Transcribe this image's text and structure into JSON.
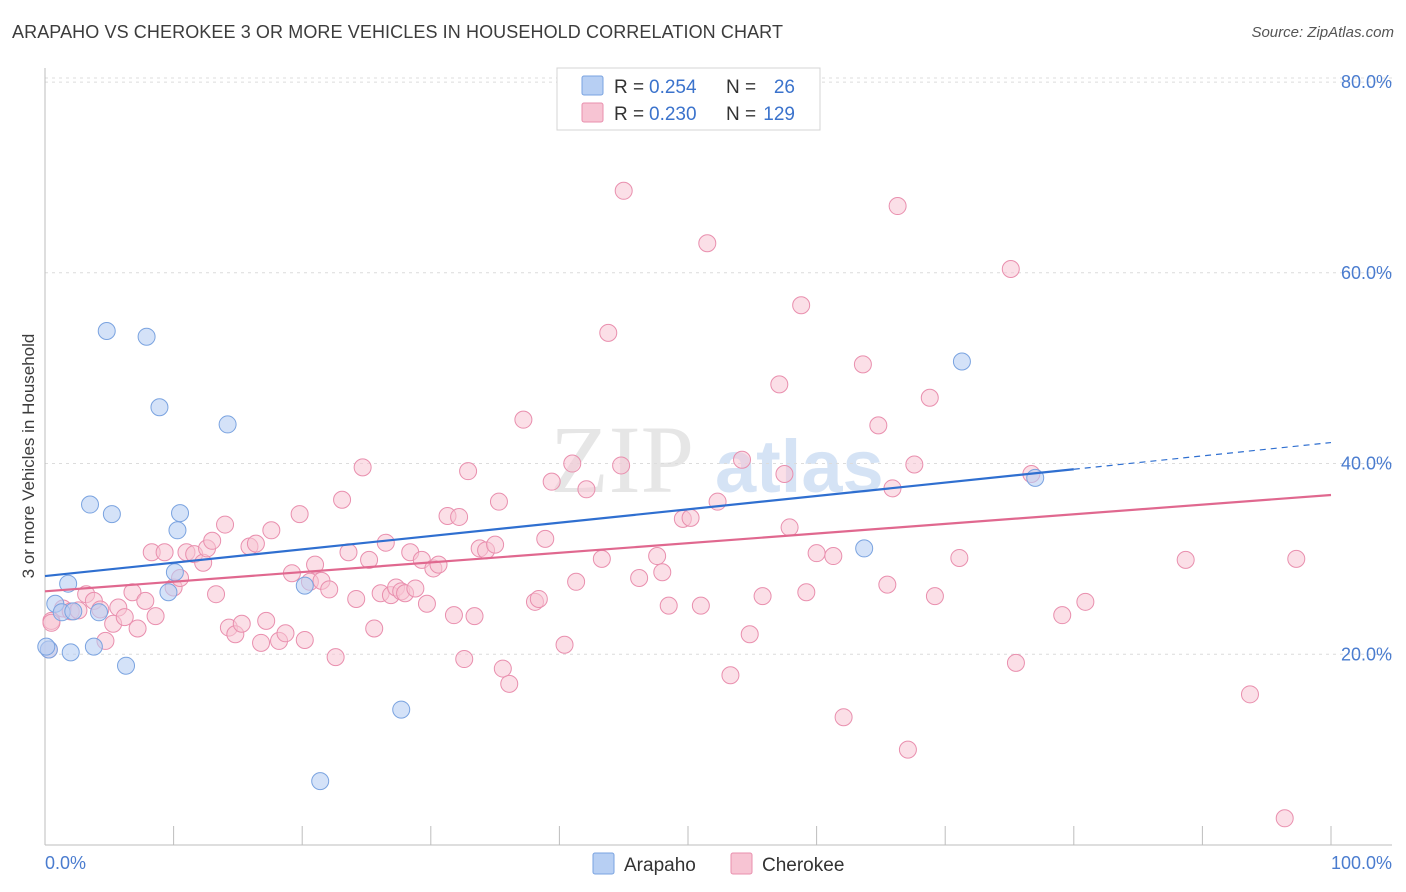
{
  "title": "ARAPAHO VS CHEROKEE 3 OR MORE VEHICLES IN HOUSEHOLD CORRELATION CHART",
  "source": "Source: ZipAtlas.com",
  "watermark": {
    "zip": "ZIP",
    "atlas": "atlas"
  },
  "colors": {
    "arapaho_fill": "#b7cff3",
    "arapaho_stroke": "#7aa3e0",
    "arapaho_line": "#2f6fd0",
    "cherokee_fill": "#f7c4d3",
    "cherokee_stroke": "#e98fae",
    "cherokee_line": "#e0688f",
    "grid": "#dcdcdc",
    "axis_label": "#4a7ccf"
  },
  "legend": {
    "arapaho": {
      "r_label": "R = ",
      "r_value": "0.254",
      "n_label": "N = ",
      "n_value": "26"
    },
    "cherokee": {
      "r_label": "R = ",
      "r_value": "0.230",
      "n_label": "N = ",
      "n_value": "129"
    }
  },
  "chart_data": {
    "type": "scatter",
    "title": "ARAPAHO VS CHEROKEE 3 OR MORE VEHICLES IN HOUSEHOLD CORRELATION CHART",
    "xlabel": "",
    "ylabel": "3 or more Vehicles in Household",
    "xlim": [
      0,
      100
    ],
    "ylim": [
      0,
      82
    ],
    "x_tick_labels": [
      "0.0%",
      "100.0%"
    ],
    "y_ticks": [
      20,
      40,
      60,
      80
    ],
    "y_tick_labels": [
      "20.0%",
      "40.0%",
      "60.0%",
      "80.0%"
    ],
    "grid": true,
    "legend_position": "top-center",
    "series": [
      {
        "name": "Arapaho",
        "r": 0.254,
        "n": 26,
        "trend": {
          "x": [
            0,
            80
          ],
          "y": [
            28.2,
            39.4
          ],
          "dashed_extension": {
            "x": [
              80,
              100
            ],
            "y": [
              39.4,
              42.2
            ]
          }
        },
        "points": [
          [
            0.3,
            20.5
          ],
          [
            0.8,
            25.3
          ],
          [
            1.3,
            24.4
          ],
          [
            1.8,
            27.4
          ],
          [
            2.0,
            20.2
          ],
          [
            2.2,
            24.5
          ],
          [
            3.5,
            35.7
          ],
          [
            3.8,
            20.8
          ],
          [
            4.2,
            24.4
          ],
          [
            4.8,
            53.9
          ],
          [
            5.2,
            34.7
          ],
          [
            6.3,
            18.8
          ],
          [
            7.9,
            53.3
          ],
          [
            8.9,
            45.9
          ],
          [
            9.6,
            26.5
          ],
          [
            10.1,
            28.6
          ],
          [
            10.3,
            33.0
          ],
          [
            10.5,
            34.8
          ],
          [
            14.2,
            44.1
          ],
          [
            20.2,
            27.2
          ],
          [
            21.4,
            6.7
          ],
          [
            27.7,
            14.2
          ],
          [
            63.7,
            31.1
          ],
          [
            71.3,
            50.7
          ],
          [
            77.0,
            38.5
          ],
          [
            0.1,
            20.8
          ]
        ]
      },
      {
        "name": "Cherokee",
        "r": 0.23,
        "n": 129,
        "trend": {
          "x": [
            0,
            100
          ],
          "y": [
            26.6,
            36.7
          ]
        },
        "points": [
          [
            0.3,
            20.5
          ],
          [
            0.5,
            23.5
          ],
          [
            1.4,
            24.8
          ],
          [
            2.0,
            24.5
          ],
          [
            2.6,
            24.6
          ],
          [
            3.2,
            26.3
          ],
          [
            3.8,
            25.6
          ],
          [
            4.3,
            24.7
          ],
          [
            4.7,
            21.4
          ],
          [
            5.3,
            23.2
          ],
          [
            5.7,
            24.9
          ],
          [
            6.2,
            23.9
          ],
          [
            6.8,
            26.5
          ],
          [
            7.2,
            22.7
          ],
          [
            7.8,
            25.6
          ],
          [
            8.3,
            30.7
          ],
          [
            8.6,
            24.0
          ],
          [
            9.3,
            30.7
          ],
          [
            10.0,
            27.0
          ],
          [
            10.5,
            28.0
          ],
          [
            11.0,
            30.7
          ],
          [
            11.6,
            30.5
          ],
          [
            12.3,
            29.6
          ],
          [
            12.6,
            31.1
          ],
          [
            13.0,
            31.9
          ],
          [
            13.3,
            26.3
          ],
          [
            14.0,
            33.6
          ],
          [
            14.3,
            22.8
          ],
          [
            14.8,
            22.1
          ],
          [
            15.3,
            23.2
          ],
          [
            15.9,
            31.3
          ],
          [
            16.4,
            31.6
          ],
          [
            16.8,
            21.2
          ],
          [
            17.2,
            23.5
          ],
          [
            17.6,
            33.0
          ],
          [
            18.2,
            21.4
          ],
          [
            18.7,
            22.2
          ],
          [
            19.2,
            28.5
          ],
          [
            19.8,
            34.7
          ],
          [
            20.2,
            21.5
          ],
          [
            20.6,
            27.6
          ],
          [
            21.0,
            29.4
          ],
          [
            21.5,
            27.7
          ],
          [
            22.1,
            26.8
          ],
          [
            22.6,
            19.7
          ],
          [
            23.1,
            36.2
          ],
          [
            23.6,
            30.7
          ],
          [
            24.2,
            25.8
          ],
          [
            24.7,
            39.6
          ],
          [
            25.2,
            29.9
          ],
          [
            25.6,
            22.7
          ],
          [
            26.1,
            26.4
          ],
          [
            26.5,
            31.7
          ],
          [
            26.9,
            26.2
          ],
          [
            27.3,
            27.0
          ],
          [
            27.7,
            26.6
          ],
          [
            28.0,
            26.4
          ],
          [
            28.4,
            30.7
          ],
          [
            28.8,
            26.9
          ],
          [
            29.3,
            29.9
          ],
          [
            29.7,
            25.3
          ],
          [
            30.2,
            29.0
          ],
          [
            30.6,
            29.4
          ],
          [
            31.3,
            34.5
          ],
          [
            31.8,
            24.1
          ],
          [
            32.2,
            34.4
          ],
          [
            32.6,
            19.5
          ],
          [
            32.9,
            39.2
          ],
          [
            33.4,
            24.0
          ],
          [
            33.8,
            31.1
          ],
          [
            34.3,
            30.9
          ],
          [
            35.0,
            31.5
          ],
          [
            35.3,
            36.0
          ],
          [
            35.6,
            18.5
          ],
          [
            36.1,
            16.9
          ],
          [
            37.2,
            44.6
          ],
          [
            38.1,
            25.5
          ],
          [
            38.4,
            25.8
          ],
          [
            38.9,
            32.1
          ],
          [
            39.4,
            38.1
          ],
          [
            40.4,
            21.0
          ],
          [
            41.0,
            40.0
          ],
          [
            41.3,
            27.6
          ],
          [
            42.1,
            37.3
          ],
          [
            43.3,
            30.0
          ],
          [
            43.8,
            53.7
          ],
          [
            44.8,
            39.8
          ],
          [
            45.0,
            68.6
          ],
          [
            46.2,
            28.0
          ],
          [
            47.6,
            30.3
          ],
          [
            48.0,
            28.6
          ],
          [
            48.5,
            25.1
          ],
          [
            49.6,
            34.2
          ],
          [
            50.2,
            34.3
          ],
          [
            51.0,
            25.1
          ],
          [
            51.5,
            63.1
          ],
          [
            52.3,
            36.0
          ],
          [
            53.3,
            17.8
          ],
          [
            54.2,
            40.4
          ],
          [
            54.8,
            22.1
          ],
          [
            55.8,
            26.1
          ],
          [
            57.1,
            48.3
          ],
          [
            57.5,
            38.9
          ],
          [
            57.9,
            33.3
          ],
          [
            58.8,
            56.6
          ],
          [
            59.2,
            26.5
          ],
          [
            60.0,
            30.6
          ],
          [
            61.3,
            30.3
          ],
          [
            62.1,
            13.4
          ],
          [
            63.6,
            50.4
          ],
          [
            64.8,
            44.0
          ],
          [
            65.5,
            27.3
          ],
          [
            65.9,
            37.4
          ],
          [
            66.3,
            67.0
          ],
          [
            67.1,
            10.0
          ],
          [
            67.6,
            39.9
          ],
          [
            68.8,
            46.9
          ],
          [
            69.2,
            26.1
          ],
          [
            71.1,
            30.1
          ],
          [
            75.1,
            60.4
          ],
          [
            75.5,
            19.1
          ],
          [
            76.7,
            38.9
          ],
          [
            79.1,
            24.1
          ],
          [
            80.9,
            25.5
          ],
          [
            88.7,
            29.9
          ],
          [
            93.7,
            15.8
          ],
          [
            96.4,
            2.8
          ],
          [
            97.3,
            30.0
          ],
          [
            0.5,
            23.3
          ]
        ]
      }
    ]
  },
  "bottom_legend": [
    "Arapaho",
    "Cherokee"
  ]
}
